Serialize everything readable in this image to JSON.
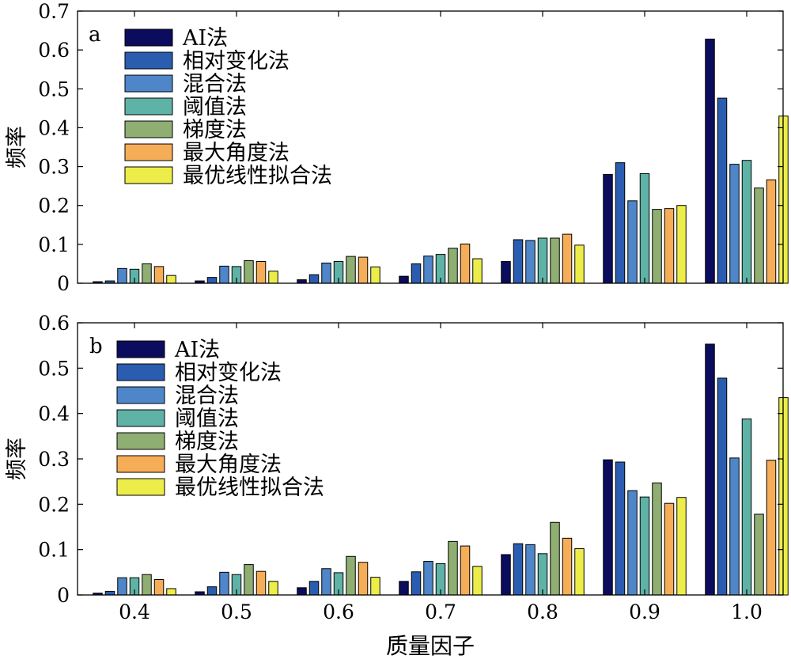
{
  "chart_data": [
    {
      "type": "bar",
      "panel_label": "a",
      "ylabel": "频率",
      "xlabel": "",
      "ylim": [
        0,
        0.7
      ],
      "yticks": [
        0,
        0.1,
        0.2,
        0.3,
        0.4,
        0.5,
        0.6,
        0.7
      ],
      "ytick_labels": [
        "0",
        "0.1",
        "0.2",
        "0.3",
        "0.4",
        "0.5",
        "0.6",
        "0.7"
      ],
      "categories": [
        "0.4",
        "0.5",
        "0.6",
        "0.7",
        "0.8",
        "0.9",
        "1.0"
      ],
      "show_xtick_labels": false,
      "legend_position": "top-left",
      "series": [
        {
          "name": "AI法",
          "color": "#0c0c5e",
          "values": [
            0.004,
            0.006,
            0.009,
            0.018,
            0.056,
            0.28,
            0.628
          ]
        },
        {
          "name": "相对变化法",
          "color": "#2a5cb0",
          "values": [
            0.006,
            0.015,
            0.022,
            0.05,
            0.112,
            0.31,
            0.476
          ]
        },
        {
          "name": "混合法",
          "color": "#4e86c9",
          "values": [
            0.038,
            0.044,
            0.052,
            0.07,
            0.11,
            0.212,
            0.306
          ]
        },
        {
          "name": "阈值法",
          "color": "#5fb3a6",
          "values": [
            0.036,
            0.043,
            0.056,
            0.074,
            0.116,
            0.282,
            0.316
          ]
        },
        {
          "name": "梯度法",
          "color": "#8fae72",
          "values": [
            0.05,
            0.058,
            0.069,
            0.09,
            0.116,
            0.19,
            0.245
          ]
        },
        {
          "name": "最大角度法",
          "color": "#f6ad57",
          "values": [
            0.043,
            0.056,
            0.067,
            0.101,
            0.126,
            0.192,
            0.266
          ]
        },
        {
          "name": "最优线性拟合法",
          "color": "#eded4a",
          "values": [
            0.02,
            0.031,
            0.042,
            0.063,
            0.098,
            0.2,
            0.43
          ]
        }
      ]
    },
    {
      "type": "bar",
      "panel_label": "b",
      "ylabel": "频率",
      "xlabel": "质量因子",
      "ylim": [
        0,
        0.6
      ],
      "yticks": [
        0,
        0.1,
        0.2,
        0.3,
        0.4,
        0.5,
        0.6
      ],
      "ytick_labels": [
        "0",
        "0.1",
        "0.2",
        "0.3",
        "0.4",
        "0.5",
        "0.6"
      ],
      "categories": [
        "0.4",
        "0.5",
        "0.6",
        "0.7",
        "0.8",
        "0.9",
        "1.0"
      ],
      "show_xtick_labels": true,
      "legend_position": "top-left",
      "series": [
        {
          "name": "AI法",
          "color": "#0c0c5e",
          "values": [
            0.004,
            0.007,
            0.016,
            0.03,
            0.089,
            0.298,
            0.553
          ]
        },
        {
          "name": "相对变化法",
          "color": "#2a5cb0",
          "values": [
            0.008,
            0.018,
            0.03,
            0.051,
            0.113,
            0.293,
            0.478
          ]
        },
        {
          "name": "混合法",
          "color": "#4e86c9",
          "values": [
            0.038,
            0.05,
            0.058,
            0.074,
            0.111,
            0.23,
            0.302
          ]
        },
        {
          "name": "阈值法",
          "color": "#5fb3a6",
          "values": [
            0.038,
            0.045,
            0.049,
            0.069,
            0.091,
            0.216,
            0.388
          ]
        },
        {
          "name": "梯度法",
          "color": "#8fae72",
          "values": [
            0.045,
            0.067,
            0.085,
            0.118,
            0.16,
            0.247,
            0.178
          ]
        },
        {
          "name": "最大角度法",
          "color": "#f6ad57",
          "values": [
            0.034,
            0.052,
            0.072,
            0.108,
            0.125,
            0.202,
            0.297
          ]
        },
        {
          "name": "最优线性拟合法",
          "color": "#eded4a",
          "values": [
            0.014,
            0.03,
            0.039,
            0.063,
            0.102,
            0.215,
            0.435
          ]
        }
      ]
    }
  ]
}
